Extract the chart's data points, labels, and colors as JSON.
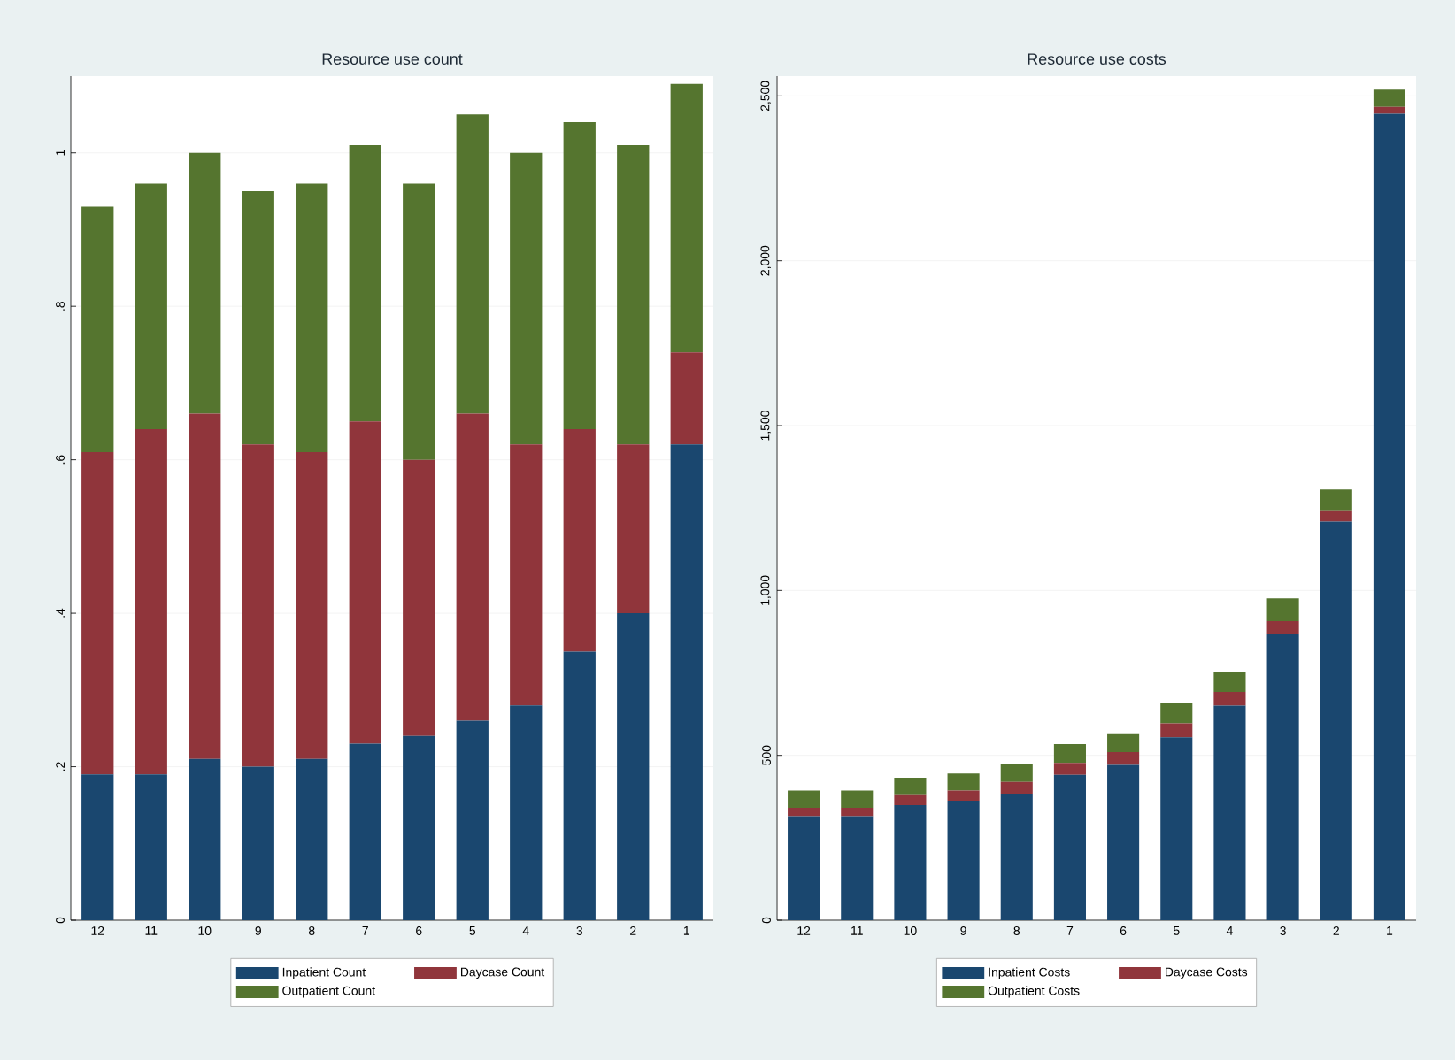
{
  "chart_data": [
    {
      "type": "bar",
      "title": "Resource use count",
      "categories": [
        "12",
        "11",
        "10",
        "9",
        "8",
        "7",
        "6",
        "5",
        "4",
        "3",
        "2",
        "1"
      ],
      "stacked": true,
      "grid": "y",
      "legend": "bottom",
      "ylim": [
        0,
        1.1
      ],
      "yticks": [
        0,
        {
          "value": 0.2,
          "label": ".2"
        },
        {
          "value": 0.4,
          "label": ".4"
        },
        {
          "value": 0.6,
          "label": ".6"
        },
        {
          "value": 0.8,
          "label": ".8"
        },
        1
      ],
      "series": [
        {
          "name": "Inpatient Count",
          "color": "#1a476f",
          "values": [
            0.19,
            0.19,
            0.21,
            0.2,
            0.21,
            0.23,
            0.24,
            0.26,
            0.28,
            0.35,
            0.4,
            0.62
          ]
        },
        {
          "name": "Daycase Count",
          "color": "#90353b",
          "values": [
            0.42,
            0.45,
            0.45,
            0.42,
            0.4,
            0.42,
            0.36,
            0.4,
            0.34,
            0.29,
            0.22,
            0.12
          ]
        },
        {
          "name": "Outpatient Count",
          "color": "#55752f",
          "values": [
            0.32,
            0.32,
            0.34,
            0.33,
            0.35,
            0.36,
            0.36,
            0.39,
            0.38,
            0.4,
            0.39,
            0.35
          ]
        }
      ]
    },
    {
      "type": "bar",
      "title": "Resource use costs",
      "categories": [
        "12",
        "11",
        "10",
        "9",
        "8",
        "7",
        "6",
        "5",
        "4",
        "3",
        "2",
        "1"
      ],
      "stacked": true,
      "grid": "y",
      "legend": "bottom",
      "ylim": [
        0,
        2560
      ],
      "yticks": [
        0,
        500,
        {
          "value": 1000,
          "label": "1,000"
        },
        {
          "value": 1500,
          "label": "1,500"
        },
        {
          "value": 2000,
          "label": "2,000"
        },
        {
          "value": 2500,
          "label": "2,500"
        }
      ],
      "series": [
        {
          "name": "Inpatient Costs",
          "color": "#1a476f",
          "values": [
            315,
            315,
            349,
            362,
            384,
            441,
            471,
            555,
            651,
            868,
            1209,
            2446
          ]
        },
        {
          "name": "Daycase Costs",
          "color": "#90353b",
          "values": [
            26,
            26,
            33,
            31,
            35,
            36,
            39,
            42,
            41,
            39,
            34,
            21
          ]
        },
        {
          "name": "Outpatient Costs",
          "color": "#55752f",
          "values": [
            52,
            52,
            50,
            52,
            54,
            57,
            57,
            61,
            61,
            69,
            63,
            52
          ]
        }
      ]
    }
  ]
}
